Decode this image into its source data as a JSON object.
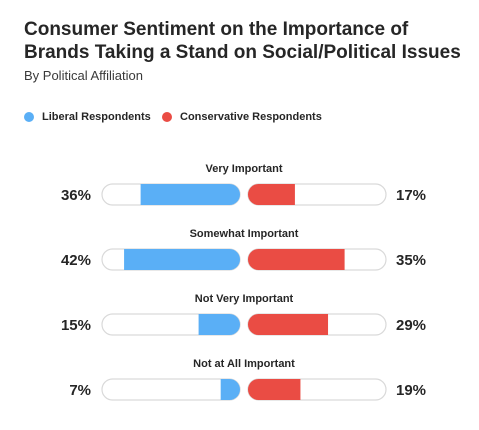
{
  "chart_data": {
    "type": "bar",
    "title": "Consumer Sentiment on the Importance of Brands Taking a Stand on Social/Political Issues",
    "subtitle": "By Political Affiliation",
    "categories": [
      "Very Important",
      "Somewhat Important",
      "Not Very Important",
      "Not at All Important"
    ],
    "series": [
      {
        "name": "Liberal Respondents",
        "values": [
          36,
          42,
          15,
          7
        ],
        "labels": [
          "36%",
          "42%",
          "15%",
          "7%"
        ],
        "color": "#5aaff6"
      },
      {
        "name": "Conservative Respondents",
        "values": [
          17,
          35,
          29,
          19
        ],
        "labels": [
          "17%",
          "35%",
          "29%",
          "19%"
        ],
        "color": "#ea4c44"
      }
    ],
    "ylim": [
      0,
      100
    ],
    "track_color": "#ffffff",
    "track_border": "#d9d9d9",
    "legend_position": "top-left"
  }
}
